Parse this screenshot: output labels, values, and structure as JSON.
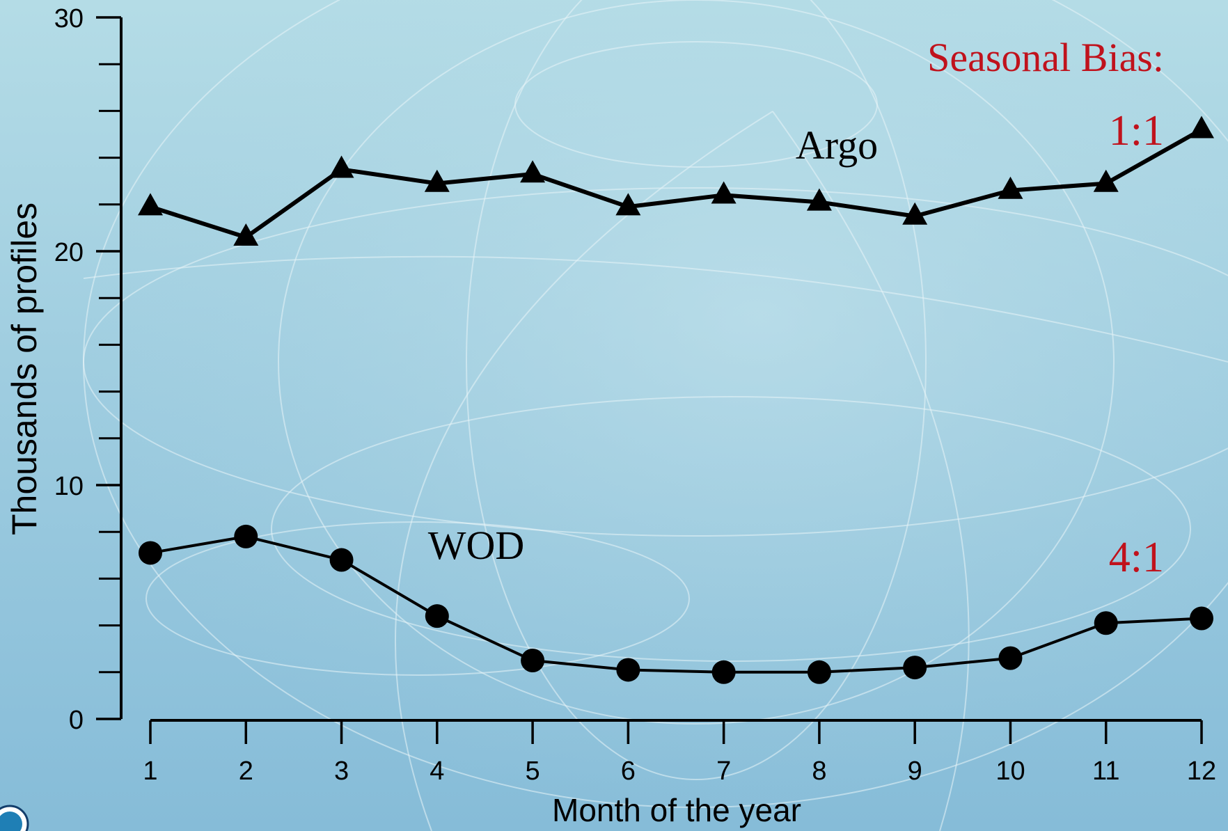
{
  "chart_data": {
    "type": "line",
    "xlabel": "Month of the year",
    "ylabel": "Thousands of profiles",
    "x": [
      1,
      2,
      3,
      4,
      5,
      6,
      7,
      8,
      9,
      10,
      11,
      12
    ],
    "ylim": [
      0,
      30
    ],
    "yticks": [
      0,
      10,
      20,
      30
    ],
    "series": [
      {
        "name": "Argo",
        "marker": "triangle",
        "values": [
          21.9,
          20.6,
          23.5,
          22.9,
          23.3,
          21.9,
          22.4,
          22.1,
          21.5,
          22.6,
          22.9,
          25.2
        ],
        "bias_label": "1:1"
      },
      {
        "name": "WOD",
        "marker": "circle",
        "values": [
          7.1,
          7.8,
          6.8,
          4.4,
          2.5,
          2.1,
          2.0,
          2.0,
          2.2,
          2.6,
          4.1,
          4.3
        ],
        "bias_label": "4:1"
      }
    ],
    "annotation_title": "Seasonal Bias:",
    "annotation_color": "#c0121c",
    "grid": false
  }
}
